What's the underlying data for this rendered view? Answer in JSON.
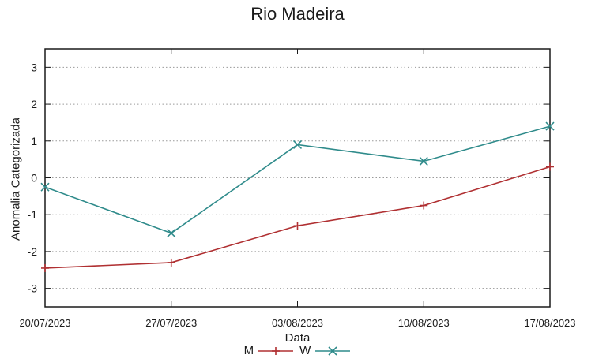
{
  "chart_data": {
    "type": "line",
    "title": "Rio Madeira",
    "xlabel": "Data",
    "ylabel": "Anomalia Categorizada",
    "categories": [
      "20/07/2023",
      "27/07/2023",
      "03/08/2023",
      "10/08/2023",
      "17/08/2023"
    ],
    "series": [
      {
        "name": "M",
        "color": "#b03032",
        "marker": "plus",
        "values": [
          -2.45,
          -2.3,
          -1.3,
          -0.75,
          0.3
        ]
      },
      {
        "name": "W",
        "color": "#2f8b8b",
        "marker": "cross",
        "values": [
          -0.25,
          -1.5,
          0.9,
          0.45,
          1.4
        ]
      }
    ],
    "ylim": [
      -3.5,
      3.5
    ],
    "yticks": [
      -3,
      -2,
      -1,
      0,
      1,
      2,
      3
    ],
    "grid": "horizontal-dotted",
    "legend_position": "bottom-center",
    "style": {
      "axis_color": "#1a1a1a",
      "grid_color": "#9a9a9a",
      "text_color": "#1a1a1a",
      "background": "#ffffff"
    }
  }
}
